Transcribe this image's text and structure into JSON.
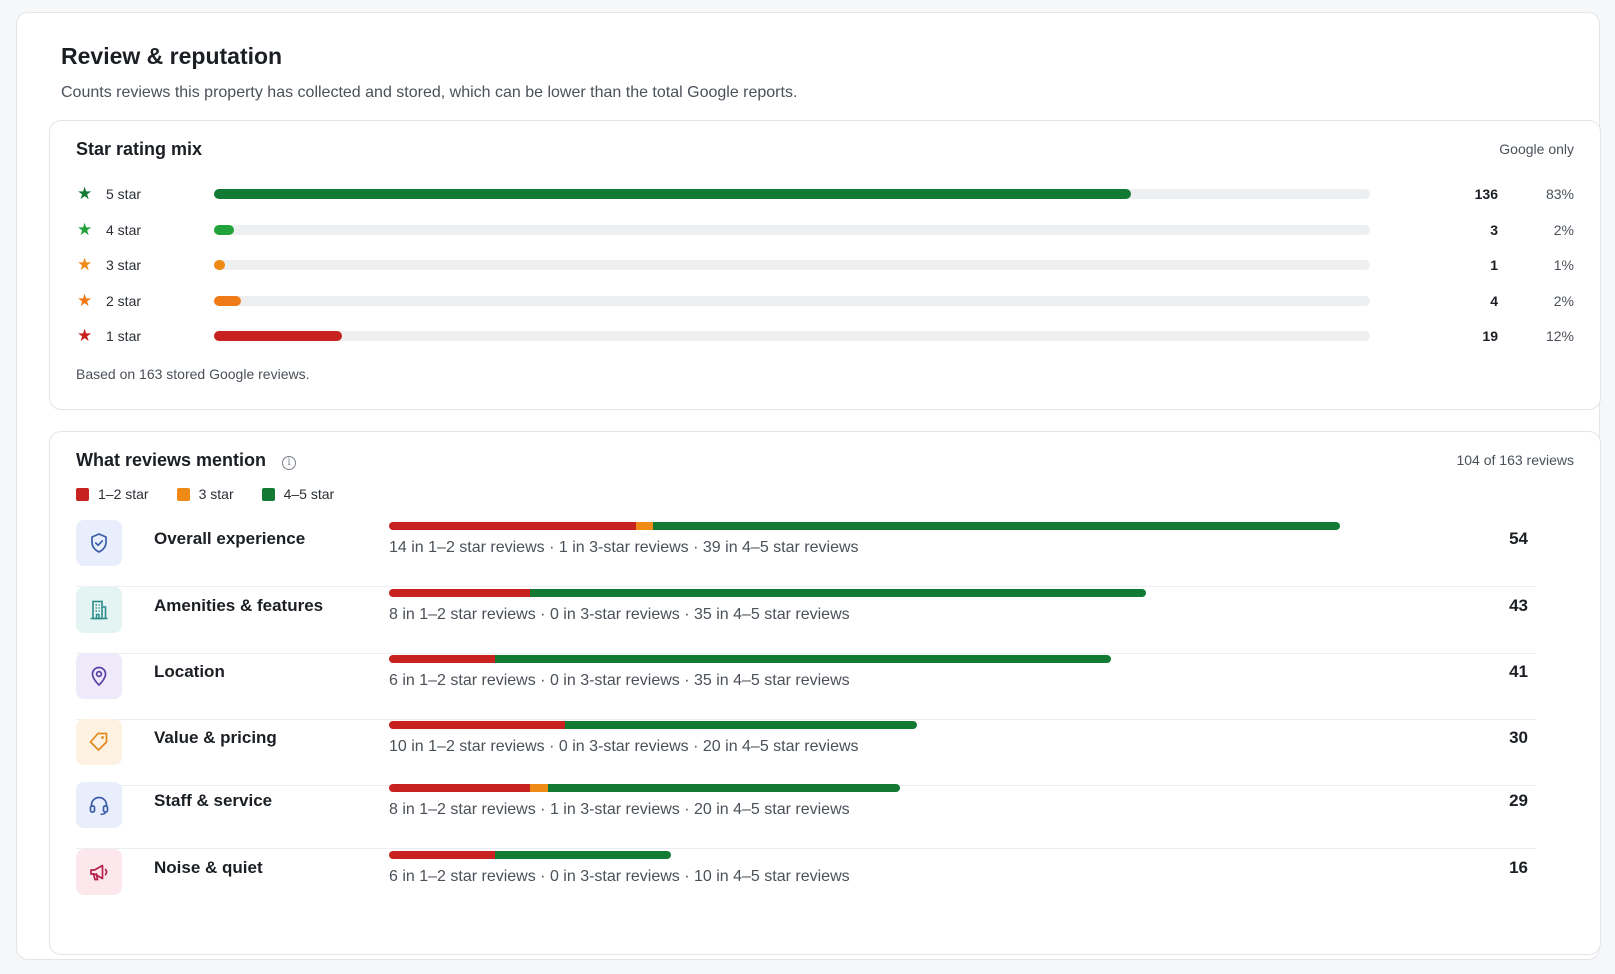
{
  "page": {
    "title": "Review & reputation",
    "subtitle": "Counts reviews this property has collected and stored, which can be lower than the total Google reports."
  },
  "star_mix": {
    "title": "Star rating mix",
    "tag": "Google only",
    "footnote": "Based on 163 stored Google reviews.",
    "rows": [
      {
        "label": "5 star",
        "count": "136",
        "pct": "83%",
        "color": "#137a33"
      },
      {
        "label": "4 star",
        "count": "3",
        "pct": "2%",
        "color": "#22a33a"
      },
      {
        "label": "3 star",
        "count": "1",
        "pct": "1%",
        "color": "#f08a16"
      },
      {
        "label": "2 star",
        "count": "4",
        "pct": "2%",
        "color": "#f07a18"
      },
      {
        "label": "1 star",
        "count": "19",
        "pct": "12%",
        "color": "#c7221f"
      }
    ]
  },
  "mentions": {
    "title": "What reviews mention",
    "summary": "104 of 163 reviews",
    "legend": [
      {
        "label": "1–2 star",
        "color": "#c7221f"
      },
      {
        "label": "3 star",
        "color": "#f08a16"
      },
      {
        "label": "4–5 star",
        "color": "#137a33"
      }
    ],
    "topics": [
      {
        "label": "Overall experience",
        "icon": "shield-check-icon",
        "total": "54",
        "low": 14,
        "mid": 1,
        "high": 39,
        "detail": "14 in 1–2 star reviews · 1 in 3-star reviews · 39 in 4–5 star reviews"
      },
      {
        "label": "Amenities & features",
        "icon": "building-icon",
        "total": "43",
        "low": 8,
        "mid": 0,
        "high": 35,
        "detail": "8 in 1–2 star reviews · 0 in 3-star reviews · 35 in 4–5 star reviews"
      },
      {
        "label": "Location",
        "icon": "map-pin-icon",
        "total": "41",
        "low": 6,
        "mid": 0,
        "high": 35,
        "detail": "6 in 1–2 star reviews · 0 in 3-star reviews · 35 in 4–5 star reviews"
      },
      {
        "label": "Value & pricing",
        "icon": "price-tag-icon",
        "total": "30",
        "low": 10,
        "mid": 0,
        "high": 20,
        "detail": "10 in 1–2 star reviews · 0 in 3-star reviews · 20 in 4–5 star reviews"
      },
      {
        "label": "Staff & service",
        "icon": "headset-icon",
        "total": "29",
        "low": 8,
        "mid": 1,
        "high": 20,
        "detail": "8 in 1–2 star reviews · 1 in 3-star reviews · 20 in 4–5 star reviews"
      },
      {
        "label": "Noise & quiet",
        "icon": "megaphone-icon",
        "total": "16",
        "low": 6,
        "mid": 0,
        "high": 10,
        "detail": "6 in 1–2 star reviews · 0 in 3-star reviews · 10 in 4–5 star reviews"
      }
    ]
  }
}
